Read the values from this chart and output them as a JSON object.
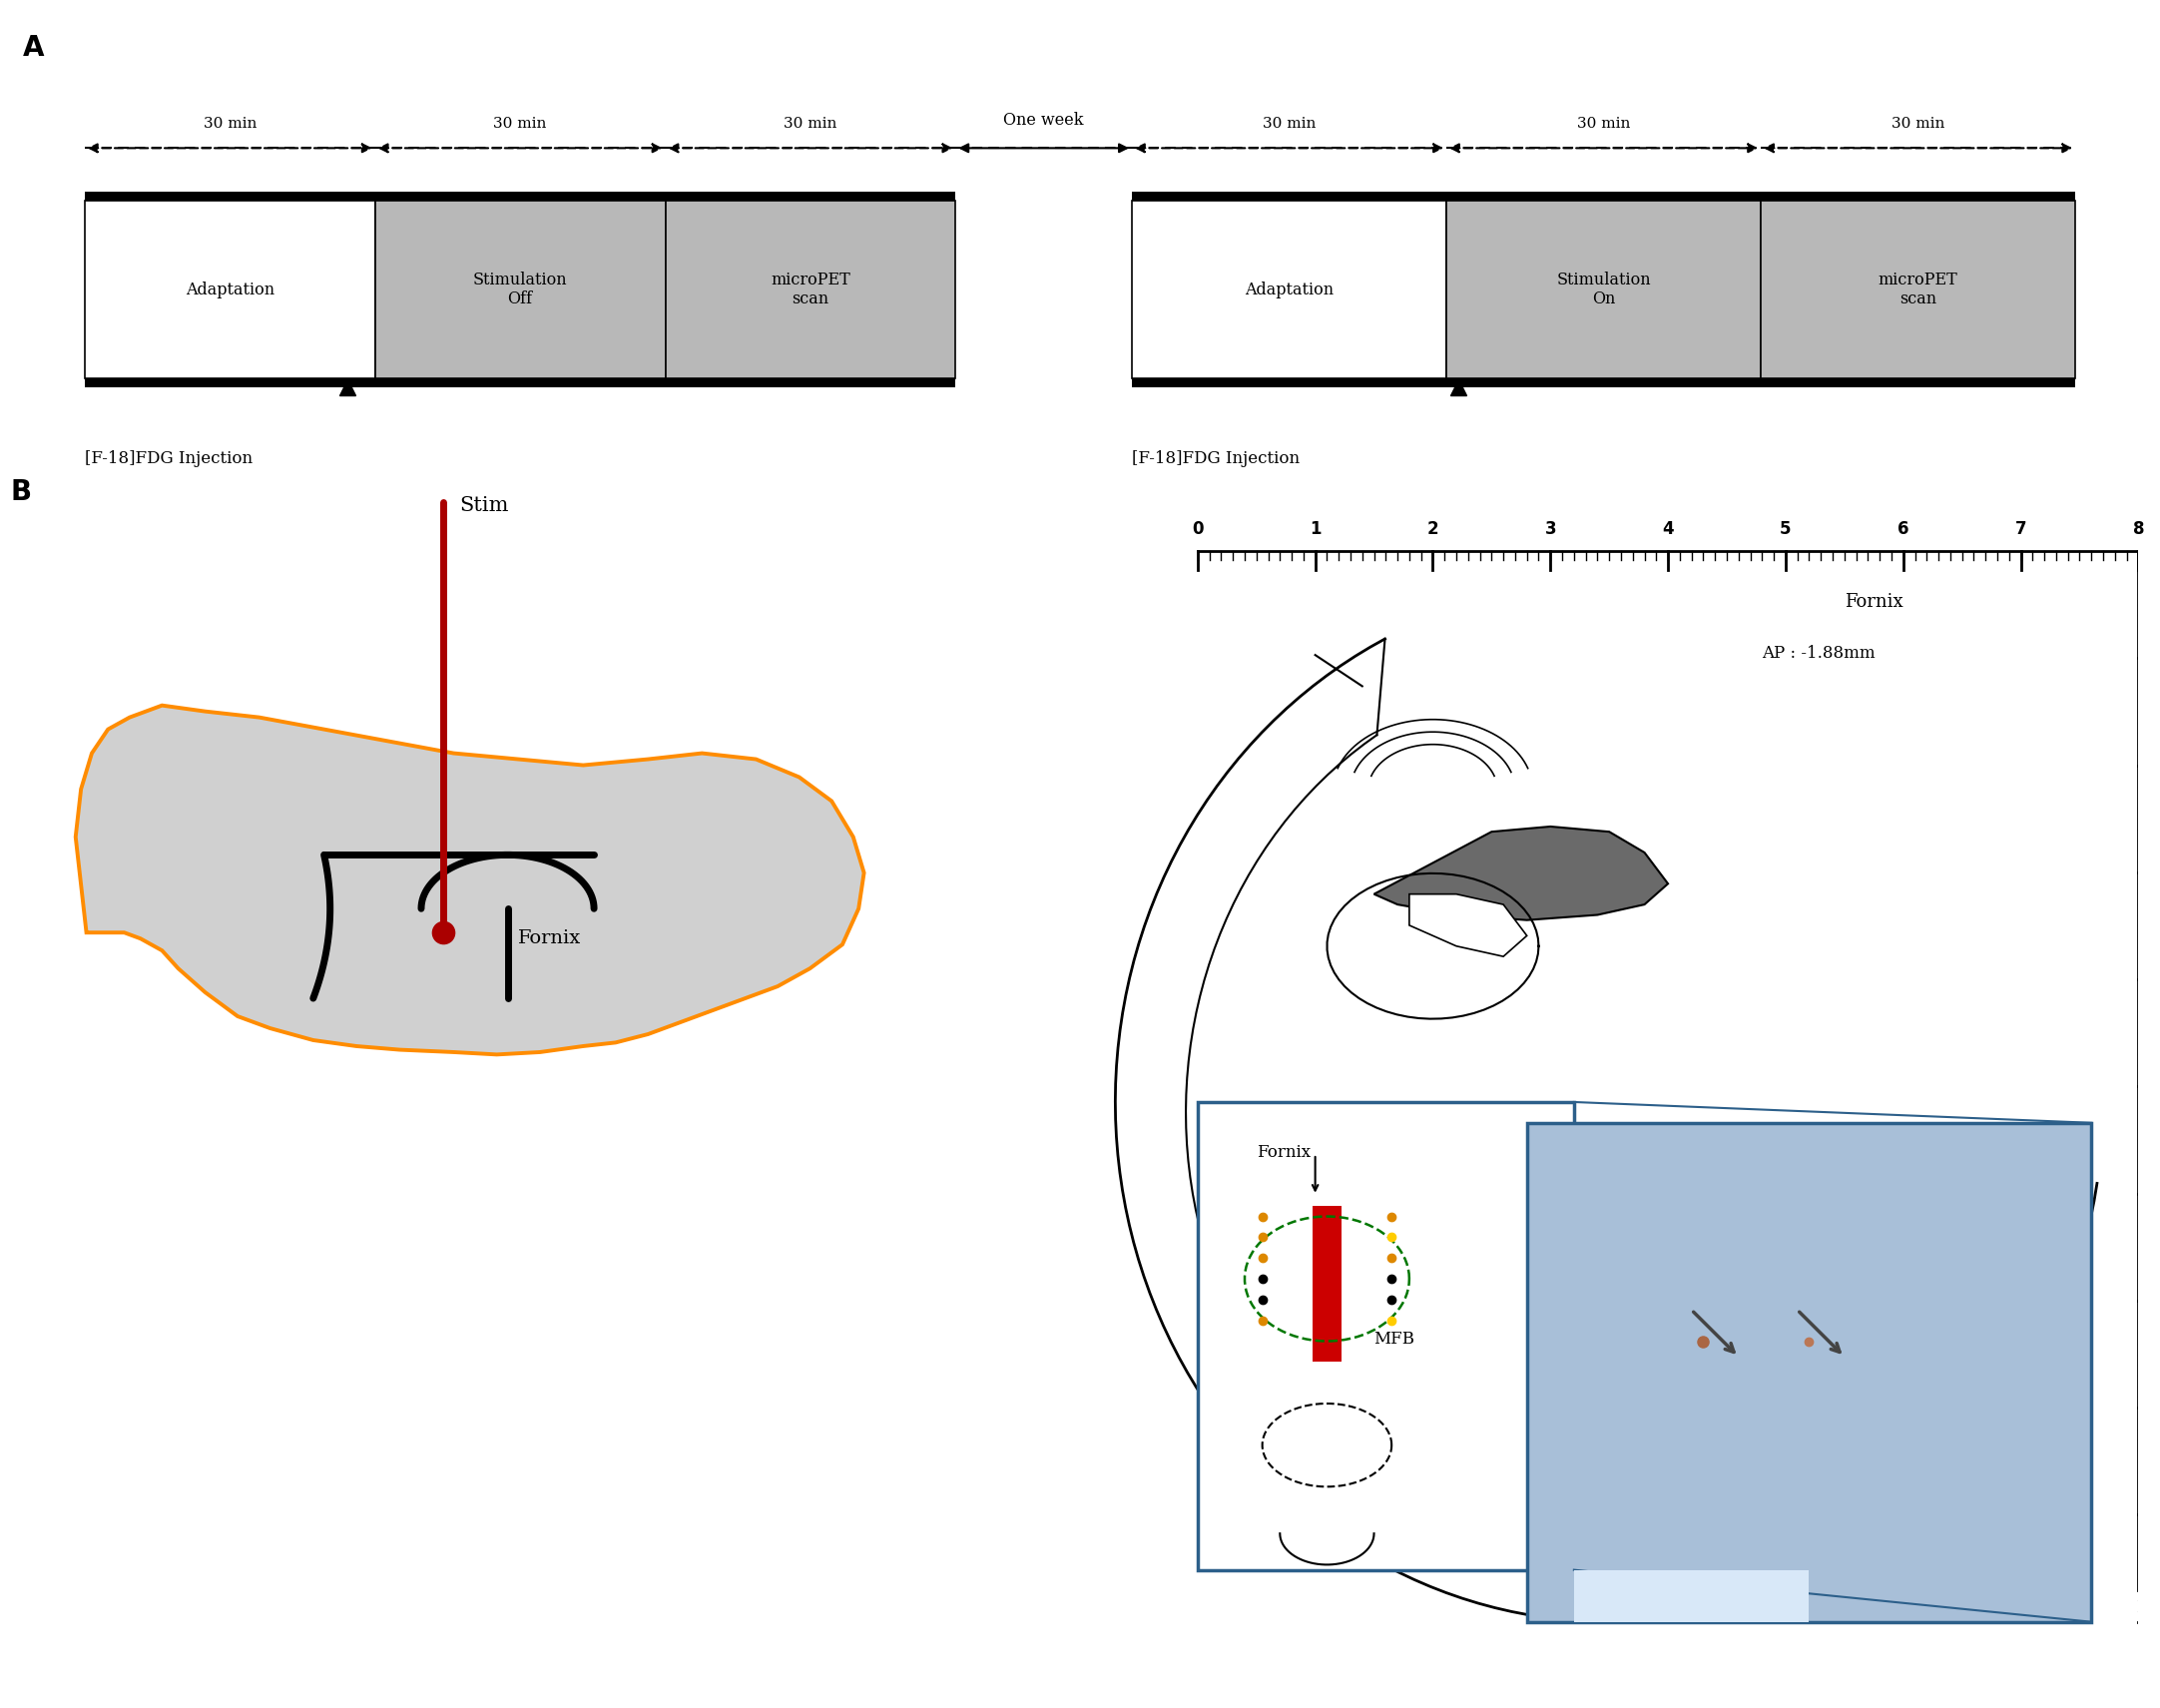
{
  "fig_width": 21.64,
  "fig_height": 17.11,
  "bg": "#ffffff",
  "panel_A": {
    "label": "A",
    "segs_left": [
      "Adaptation",
      "Stimulation\nOff",
      "microPET\nscan"
    ],
    "segs_right": [
      "Adaptation",
      "Stimulation\nOn",
      "microPET\nscan"
    ],
    "seg_colors": [
      "#ffffff",
      "#b8b8b8",
      "#b8b8b8"
    ],
    "durations": [
      "30 min",
      "30 min",
      "30 min"
    ],
    "one_week": "One week",
    "injection": "[F-18]FDG Injection"
  },
  "panel_B": {
    "label": "B",
    "stim_label": "Stim",
    "fornix_label": "Fornix",
    "fornix_label2": "Fornix",
    "mfb_label": "MFB",
    "ap_label": "AP : -1.88mm",
    "ruler_label": "Fornix",
    "brain_gray": "#d0d0d0",
    "brain_orange": "#ff8c00",
    "stim_red": "#aa0000",
    "cc_gray": "#6a6a6a",
    "inset_blue": "#2c5f8a",
    "photo_blue_bg": "#a8bfd8"
  }
}
